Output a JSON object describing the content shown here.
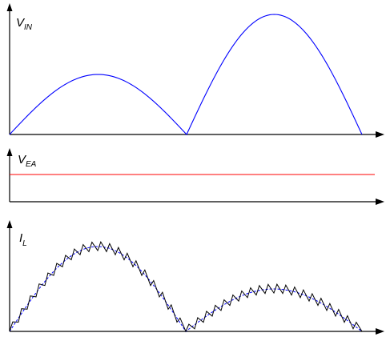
{
  "labels": {
    "vin": {
      "main": "V",
      "sub": "IN"
    },
    "vea": {
      "main": "V",
      "sub": "EA"
    },
    "il": {
      "main": "I",
      "sub": "L"
    }
  },
  "colors": {
    "vin_curve": "#0000ff",
    "vea_line": "#ff0000",
    "il_ripple": "#000000",
    "il_average": "#0000ff"
  },
  "chart_data": [
    {
      "type": "line",
      "panel": "V_IN",
      "series": [
        {
          "shape": "rectified-sine",
          "half_cycles": [
            {
              "relative_peak": 0.5
            },
            {
              "relative_peak": 1.0
            }
          ]
        }
      ]
    },
    {
      "type": "line",
      "panel": "V_EA",
      "series": [
        {
          "shape": "constant"
        }
      ]
    },
    {
      "type": "line",
      "panel": "I_L",
      "series": [
        {
          "shape": "sawtooth-ripple-around-rectified-sine",
          "half_cycles": [
            {
              "relative_peak": 1.0,
              "ripple_teeth": 20
            },
            {
              "relative_peak": 0.5,
              "ripple_teeth": 20
            }
          ]
        },
        {
          "shape": "rectified-sine-average",
          "line_style": "dashed",
          "half_cycles": [
            {
              "relative_peak": 1.0
            },
            {
              "relative_peak": 0.5
            }
          ]
        }
      ]
    }
  ]
}
